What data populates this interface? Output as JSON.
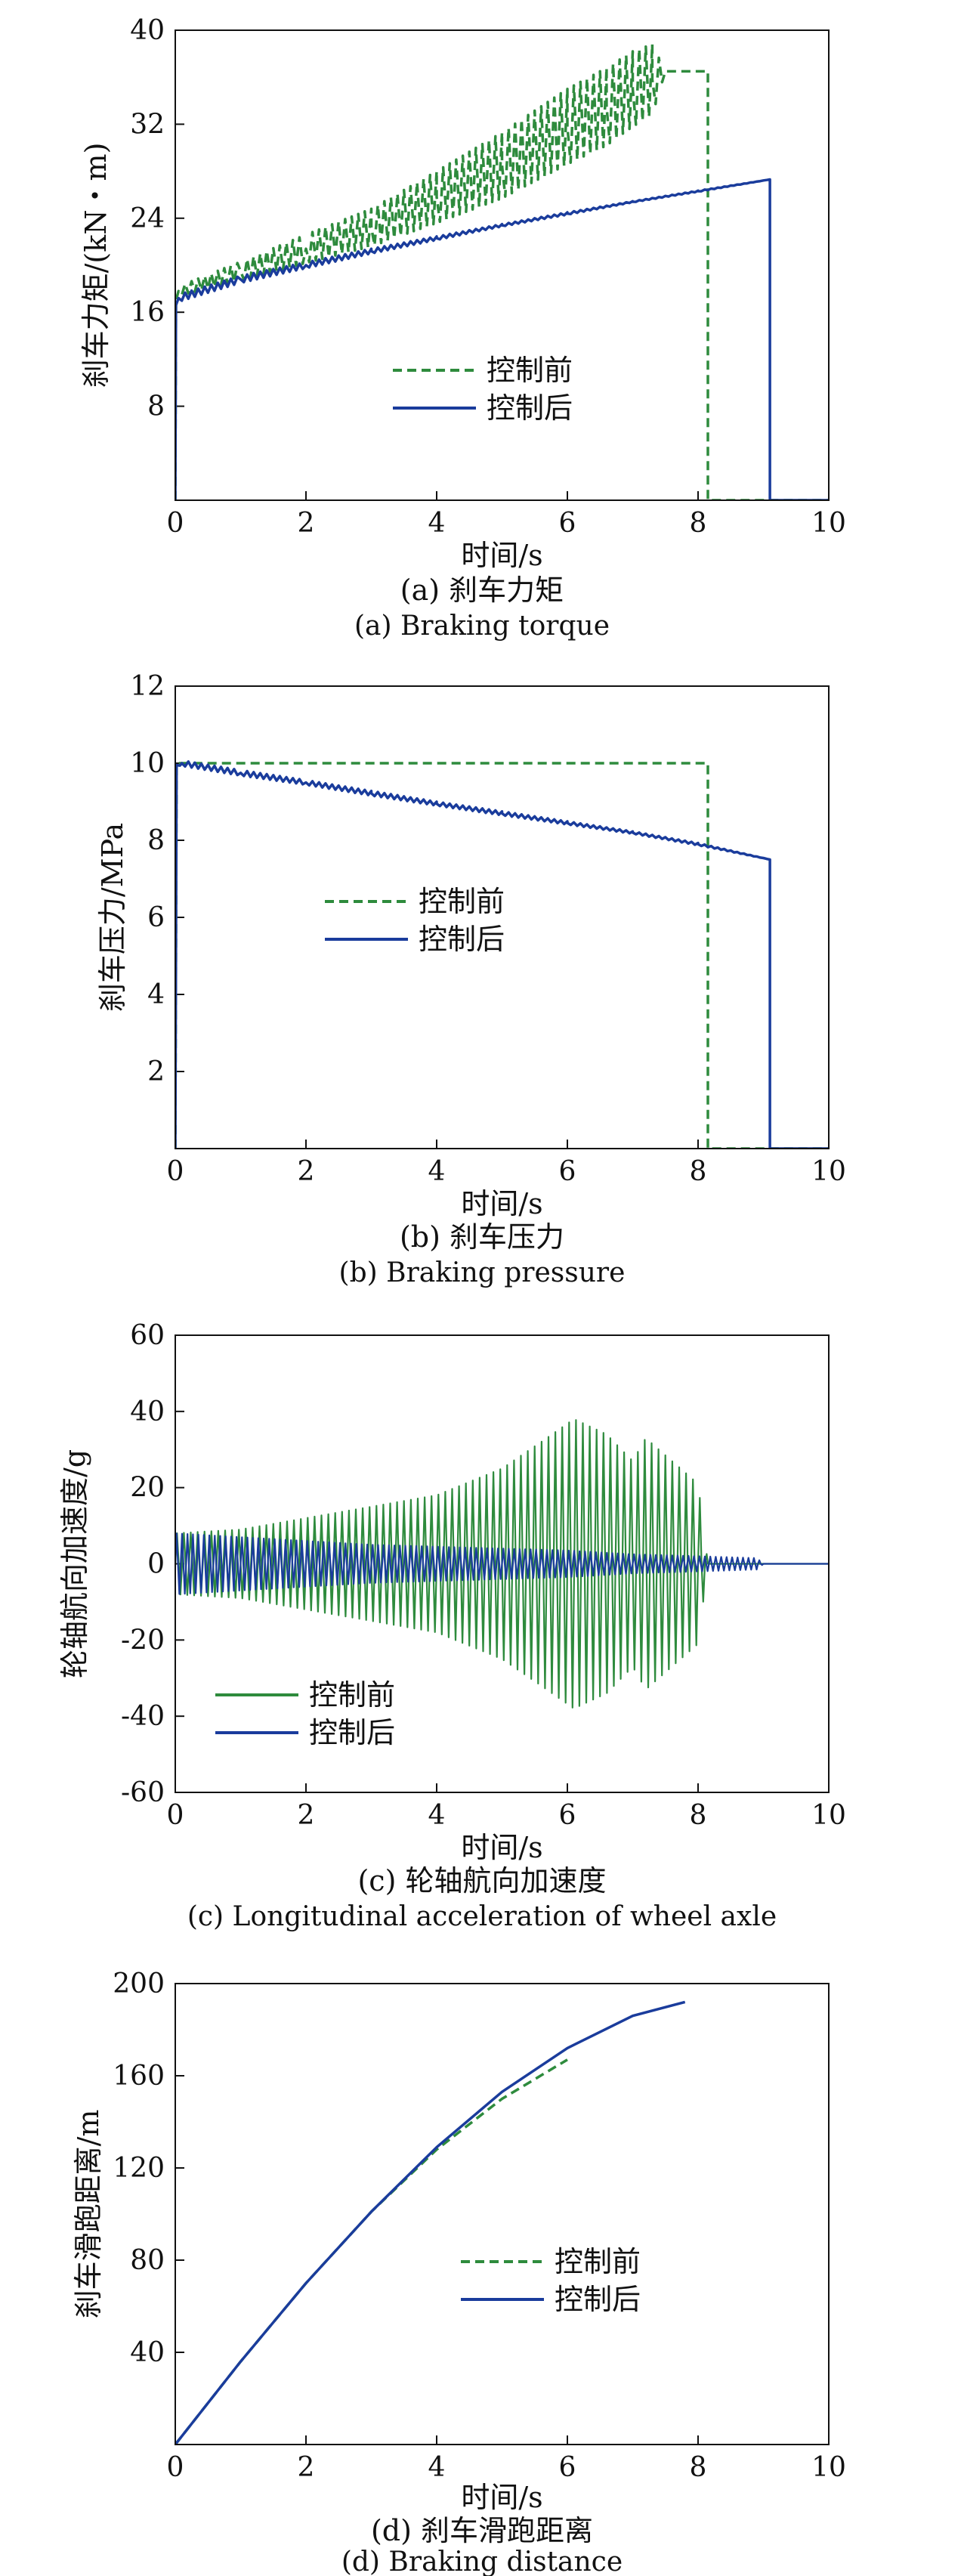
{
  "colors": {
    "before": "#2e8b3d",
    "after": "#1a3c9c",
    "axis": "#111111"
  },
  "chart_data": [
    {
      "id": "a",
      "type": "line",
      "caption_cn": "(a) 刹车力矩",
      "caption_en": "(a) Braking torque",
      "xlabel": "时间/s",
      "ylabel": "刹车力矩/(kN・m)",
      "xlim": [
        0,
        10
      ],
      "ylim": [
        0,
        40
      ],
      "xticks": [
        0,
        2,
        4,
        6,
        8,
        10
      ],
      "yticks": [
        8,
        16,
        24,
        32,
        40
      ],
      "legend_position": "center-left",
      "series": [
        {
          "name": "控制前",
          "style": "dashed",
          "color": "before",
          "x": [
            0,
            0.01,
            0.05,
            1,
            2,
            3,
            4,
            5,
            6,
            6.6,
            7,
            7.3,
            7.5,
            8.15,
            8.15,
            10
          ],
          "y": [
            0,
            17,
            17.8,
            19.5,
            21.4,
            23.2,
            25.8,
            28.5,
            31.8,
            33.5,
            35,
            35.8,
            36.5,
            36.5,
            0,
            0
          ],
          "oscillation_amplitude": [
            0,
            0,
            0.4,
            0.8,
            1.2,
            1.6,
            2.2,
            2.8,
            3.2,
            3.3,
            3.2,
            3,
            0,
            0,
            0,
            0
          ]
        },
        {
          "name": "控制后",
          "style": "solid",
          "color": "after",
          "x": [
            0,
            0.01,
            0.05,
            1,
            2,
            3,
            4,
            5,
            6,
            7,
            8,
            9.1,
            9.1,
            10
          ],
          "y": [
            0,
            16.6,
            17.2,
            18.8,
            20,
            21.2,
            22.3,
            23.4,
            24.4,
            25.4,
            26.3,
            27.3,
            0,
            0
          ],
          "oscillation_amplitude": [
            0,
            0,
            0.3,
            0.3,
            0.25,
            0.2,
            0.15,
            0.1,
            0.1,
            0.05,
            0.05,
            0,
            0,
            0
          ]
        }
      ]
    },
    {
      "id": "b",
      "type": "line",
      "caption_cn": "(b) 刹车压力",
      "caption_en": "(b) Braking pressure",
      "xlabel": "时间/s",
      "ylabel": "刹车压力/MPa",
      "xlim": [
        0,
        10
      ],
      "ylim": [
        0,
        12
      ],
      "xticks": [
        0,
        2,
        4,
        6,
        8,
        10
      ],
      "yticks": [
        2,
        4,
        6,
        8,
        10,
        12
      ],
      "legend_position": "center-left",
      "series": [
        {
          "name": "控制前",
          "style": "dashed",
          "color": "before",
          "x": [
            0,
            0.02,
            8.15,
            8.15,
            10
          ],
          "y": [
            0,
            10,
            10,
            0,
            0
          ]
        },
        {
          "name": "控制后",
          "style": "solid",
          "color": "after",
          "x": [
            0,
            0.02,
            0.1,
            1,
            2,
            3,
            4,
            5,
            6,
            7,
            8,
            9.1,
            9.1,
            10
          ],
          "y": [
            0,
            9.95,
            10,
            9.75,
            9.5,
            9.22,
            8.95,
            8.7,
            8.45,
            8.2,
            7.9,
            7.5,
            0,
            0
          ],
          "oscillation_amplitude": [
            0,
            0,
            0.07,
            0.07,
            0.06,
            0.06,
            0.05,
            0.05,
            0.04,
            0.03,
            0.03,
            0,
            0,
            0
          ]
        }
      ]
    },
    {
      "id": "c",
      "type": "line",
      "caption_cn": "(c) 轮轴航向加速度",
      "caption_en": "(c) Longitudinal acceleration of wheel axle",
      "xlabel": "时间/s",
      "ylabel": "轮轴航向加速度/g",
      "xlim": [
        0,
        10
      ],
      "ylim": [
        -60,
        60
      ],
      "xticks": [
        0,
        2,
        4,
        6,
        8,
        10
      ],
      "yticks": [
        -60,
        -40,
        -20,
        0,
        20,
        40,
        60
      ],
      "legend_position": "lower-left",
      "series": [
        {
          "name": "控制前",
          "style": "solid",
          "color": "before",
          "t": [
            0,
            1,
            2,
            3,
            4,
            5,
            5.6,
            6.1,
            6.6,
            7,
            7.2,
            7.6,
            8,
            8.15
          ],
          "envelope": [
            8,
            9,
            12,
            15,
            18,
            25,
            32,
            38,
            34,
            27,
            33,
            27,
            21,
            0
          ],
          "cycles_per_second": 9.5,
          "ends_at": 8.15,
          "baseline_after": 0
        },
        {
          "name": "控制后",
          "style": "solid",
          "color": "after",
          "t": [
            0,
            1,
            2,
            3,
            4,
            5,
            6,
            7,
            8,
            8.9,
            9
          ],
          "envelope": [
            8,
            7,
            6,
            5,
            4.5,
            4,
            3.5,
            2.5,
            2,
            1.5,
            0
          ],
          "cycles_per_second": 12,
          "ends_at": 9,
          "baseline_after": 0
        }
      ]
    },
    {
      "id": "d",
      "type": "line",
      "caption_cn": "(d) 刹车滑跑距离",
      "caption_en": "(d) Braking distance",
      "xlabel": "时间/s",
      "ylabel": "刹车滑跑距离/m",
      "xlim": [
        0,
        10
      ],
      "ylim": [
        0,
        200
      ],
      "xticks": [
        0,
        2,
        4,
        6,
        8,
        10
      ],
      "yticks": [
        40,
        80,
        120,
        160,
        200
      ],
      "legend_position": "center-right",
      "series": [
        {
          "name": "控制前",
          "style": "dashed",
          "color": "before",
          "x": [
            0,
            1,
            2,
            3,
            4,
            5,
            6
          ],
          "y": [
            0,
            36,
            70,
            101,
            128,
            150,
            167
          ]
        },
        {
          "name": "控制后",
          "style": "solid",
          "color": "after",
          "x": [
            0,
            1,
            2,
            3,
            4,
            5,
            6,
            7,
            7.8
          ],
          "y": [
            0,
            36,
            70,
            101,
            129,
            153,
            172,
            186,
            192
          ]
        }
      ]
    }
  ]
}
